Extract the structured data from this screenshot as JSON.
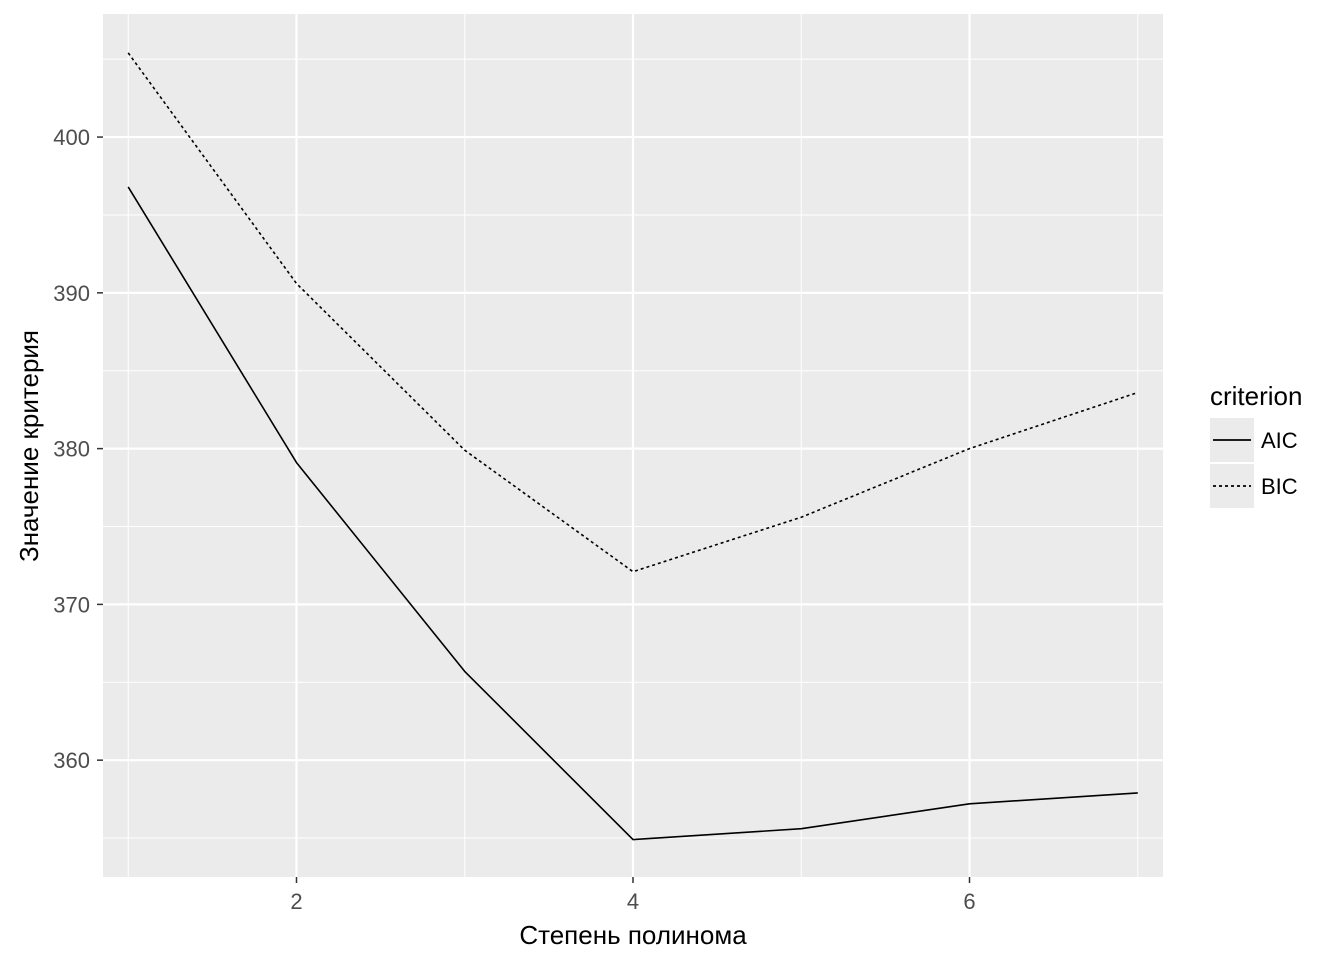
{
  "chart_data": {
    "type": "line",
    "title": "",
    "xlabel": "Степень полинома",
    "ylabel": "Значение критерия",
    "x": [
      1,
      2,
      3,
      4,
      5,
      6,
      7
    ],
    "xlim": [
      0.85,
      7.15
    ],
    "ylim": [
      352.5,
      407.9
    ],
    "xticks": [
      2,
      4,
      6
    ],
    "yticks": [
      360,
      370,
      380,
      390,
      400
    ],
    "xtick_labels": [
      "2",
      "4",
      "6"
    ],
    "ytick_labels": [
      "360",
      "370",
      "380",
      "390",
      "400"
    ],
    "grid": true,
    "legend": {
      "title": "criterion",
      "position": "right"
    },
    "series": [
      {
        "name": "AIC",
        "linetype": "solid",
        "values": [
          396.8,
          379.1,
          365.7,
          354.9,
          355.6,
          357.2,
          357.9
        ]
      },
      {
        "name": "BIC",
        "linetype": "dotted",
        "values": [
          405.4,
          390.6,
          379.9,
          372.1,
          375.6,
          380.0,
          383.6
        ]
      }
    ],
    "colors": {
      "panel": "#ebebeb",
      "grid_major": "#ffffff",
      "line": "#000000",
      "tick_text": "#4d4d4d"
    }
  }
}
